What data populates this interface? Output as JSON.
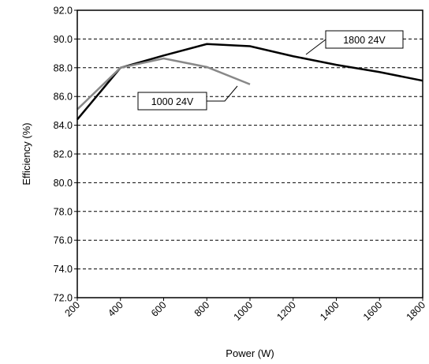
{
  "chart_data": {
    "type": "line",
    "title": "",
    "xlabel": "Power (W)",
    "ylabel": "Efficiency (%)",
    "xlim": [
      200,
      1800
    ],
    "ylim": [
      72.0,
      92.0
    ],
    "x_ticks": [
      "200",
      "400",
      "600",
      "800",
      "1000",
      "1200",
      "1400",
      "1600",
      "1800"
    ],
    "y_ticks": [
      "72.0",
      "74.0",
      "76.0",
      "78.0",
      "80.0",
      "82.0",
      "84.0",
      "86.0",
      "88.0",
      "90.0",
      "92.0"
    ],
    "grid": "horizontal dashed",
    "series": [
      {
        "name": "1800 24V",
        "color": "#000000",
        "points": [
          [
            200,
            84.4
          ],
          [
            400,
            88.0
          ],
          [
            600,
            88.85
          ],
          [
            800,
            89.65
          ],
          [
            1000,
            89.5
          ],
          [
            1200,
            88.8
          ],
          [
            1400,
            88.2
          ],
          [
            1600,
            87.7
          ],
          [
            1800,
            87.1
          ]
        ]
      },
      {
        "name": "1000 24V",
        "color": "#888888",
        "points": [
          [
            200,
            85.1
          ],
          [
            400,
            88.0
          ],
          [
            600,
            88.65
          ],
          [
            800,
            88.05
          ],
          [
            1000,
            86.85
          ]
        ]
      }
    ]
  }
}
